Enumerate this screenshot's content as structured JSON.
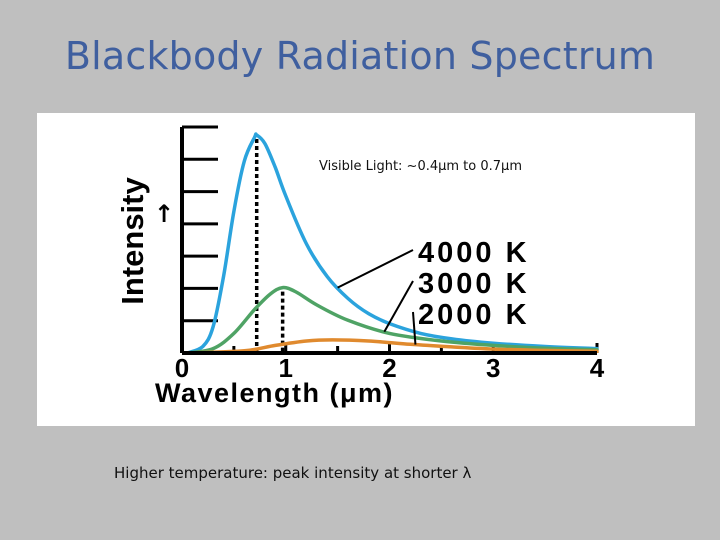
{
  "slide": {
    "title": "Blackbody Radiation Spectrum",
    "caption": "Higher temperature: peak intensity at shorter λ"
  },
  "chart_data": {
    "type": "line",
    "title": "",
    "xlabel": "Wavelength (μm)",
    "ylabel": "Intensity",
    "ylabel_arrow": "↑",
    "annotation": "Visible Light: ~0.4μm to 0.7μm",
    "x_ticks": [
      "0",
      "1",
      "2",
      "3",
      "4"
    ],
    "xlim": [
      0,
      4
    ],
    "ylim": [
      0,
      1
    ],
    "grid": false,
    "y_ticks_unlabeled": 7,
    "series": [
      {
        "name": "4000 K",
        "color": "#2ba3dd",
        "peak_x": 0.72,
        "x": [
          0.05,
          0.2,
          0.3,
          0.4,
          0.5,
          0.6,
          0.7,
          0.72,
          0.8,
          0.9,
          1.0,
          1.2,
          1.4,
          1.6,
          1.8,
          2.0,
          2.3,
          2.6,
          3.0,
          3.5,
          4.0
        ],
        "y": [
          0.0,
          0.03,
          0.12,
          0.35,
          0.65,
          0.88,
          0.99,
          1.0,
          0.96,
          0.85,
          0.72,
          0.5,
          0.35,
          0.25,
          0.18,
          0.135,
          0.09,
          0.065,
          0.045,
          0.03,
          0.02
        ]
      },
      {
        "name": "3000 K",
        "color": "#4fa365",
        "peak_x": 0.97,
        "x": [
          0.05,
          0.3,
          0.5,
          0.7,
          0.85,
          0.97,
          1.1,
          1.3,
          1.6,
          2.0,
          2.5,
          3.0,
          3.5,
          4.0
        ],
        "y": [
          0.0,
          0.02,
          0.09,
          0.2,
          0.27,
          0.3,
          0.28,
          0.22,
          0.15,
          0.09,
          0.055,
          0.035,
          0.022,
          0.015
        ]
      },
      {
        "name": "2000 K",
        "color": "#e08a2e",
        "peak_x": 1.45,
        "x": [
          0.05,
          0.6,
          0.9,
          1.2,
          1.45,
          1.8,
          2.2,
          2.6,
          3.0,
          3.5,
          4.0
        ],
        "y": [
          0.0,
          0.01,
          0.035,
          0.055,
          0.06,
          0.055,
          0.04,
          0.028,
          0.018,
          0.012,
          0.008
        ]
      }
    ]
  }
}
